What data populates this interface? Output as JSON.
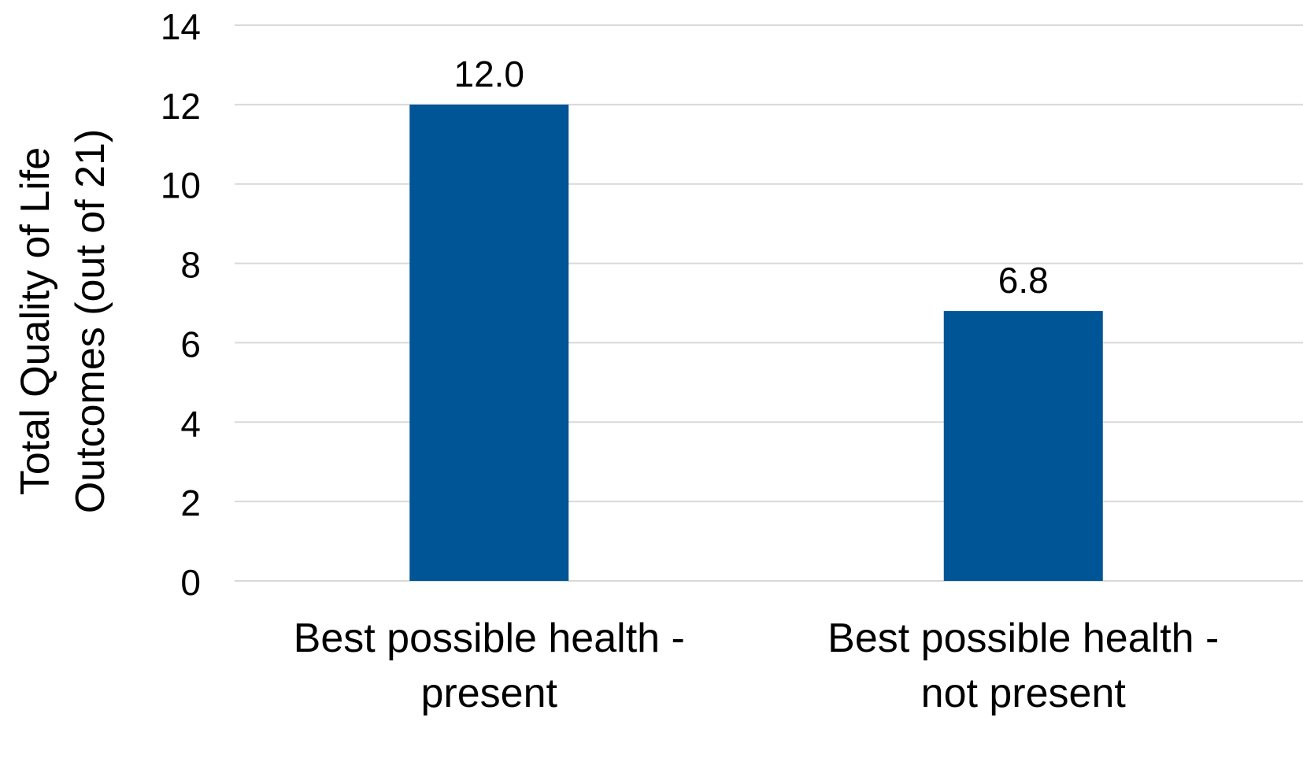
{
  "chart_data": {
    "type": "bar",
    "title": "",
    "xlabel": "",
    "ylabel_lines": [
      "Total Quality of Life",
      "Outcomes (out of 21)"
    ],
    "categories": [
      [
        "Best possible health -",
        "present"
      ],
      [
        "Best possible health -",
        "not present"
      ]
    ],
    "values": [
      12.0,
      6.8
    ],
    "data_labels": [
      "12.0",
      "6.8"
    ],
    "ylim": [
      0,
      14
    ],
    "yticks": [
      0,
      2,
      4,
      6,
      8,
      10,
      12,
      14
    ],
    "grid": true,
    "legend": "none",
    "colors": {
      "bar": "#005596",
      "grid": "#d9d9d9",
      "text": "#000000"
    }
  }
}
